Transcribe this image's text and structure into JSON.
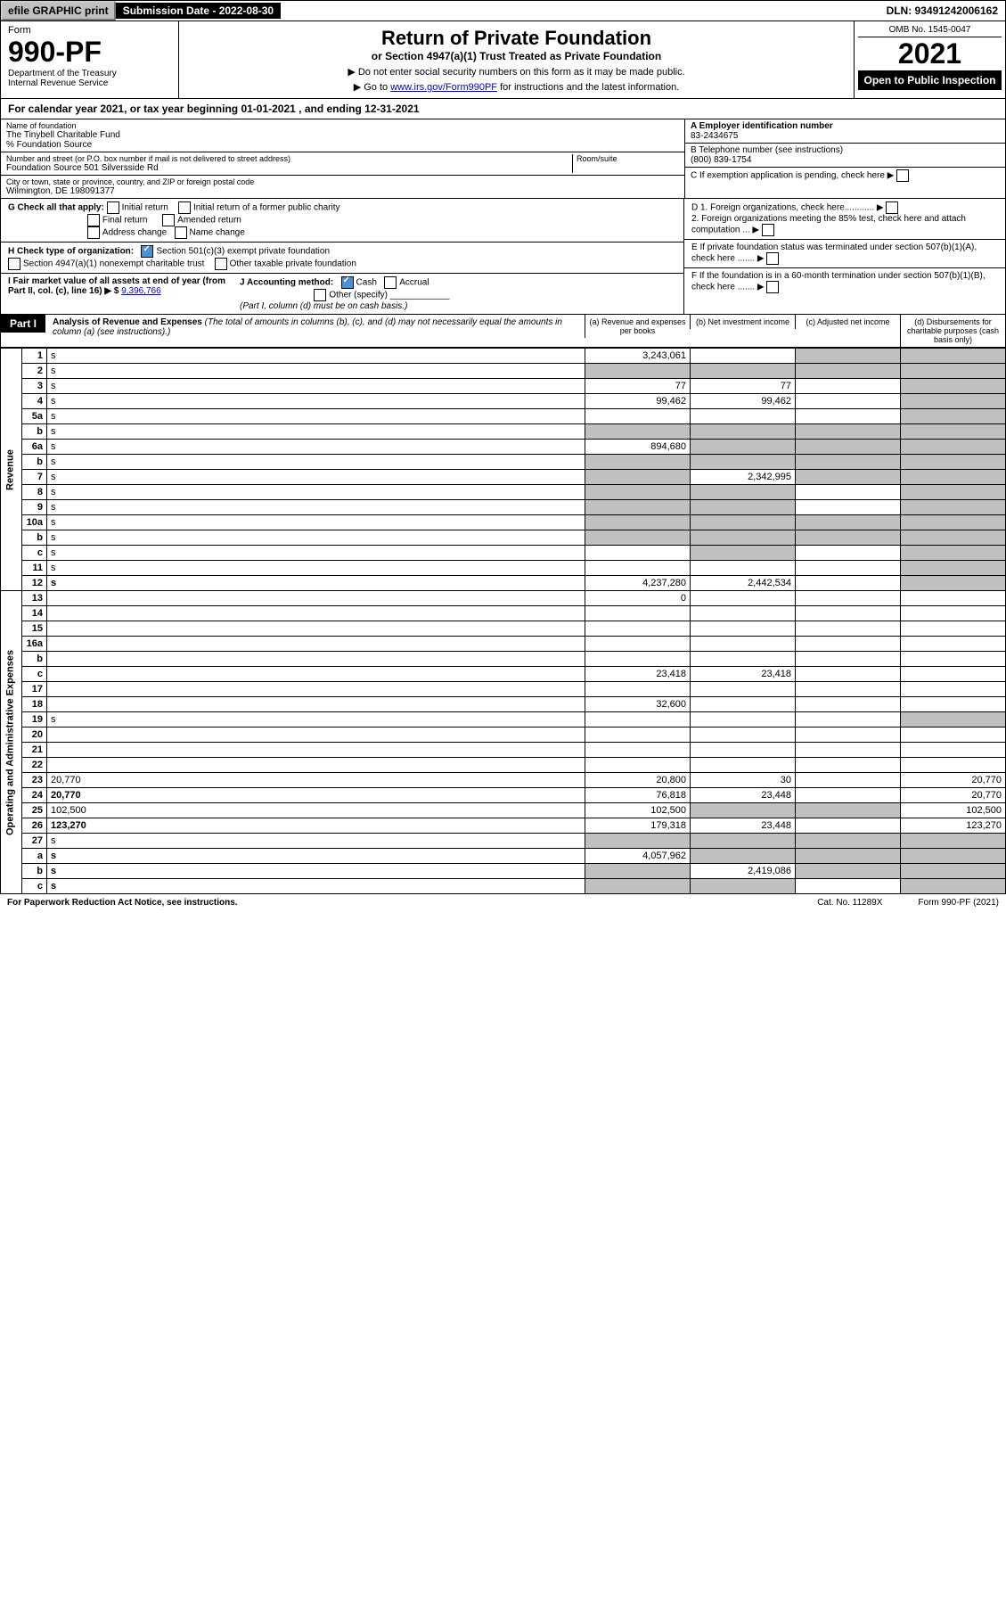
{
  "topbar": {
    "efile": "efile GRAPHIC print",
    "subdate_label": "Submission Date - 2022-08-30",
    "dln": "DLN: 93491242006162"
  },
  "header": {
    "form_label": "Form",
    "form_num": "990-PF",
    "dept": "Department of the Treasury\nInternal Revenue Service",
    "title": "Return of Private Foundation",
    "subtitle": "or Section 4947(a)(1) Trust Treated as Private Foundation",
    "instr1": "▶ Do not enter social security numbers on this form as it may be made public.",
    "instr2_pre": "▶ Go to ",
    "instr2_link": "www.irs.gov/Form990PF",
    "instr2_post": " for instructions and the latest information.",
    "omb": "OMB No. 1545-0047",
    "year": "2021",
    "open": "Open to Public Inspection"
  },
  "calyear": "For calendar year 2021, or tax year beginning 01-01-2021            , and ending 12-31-2021",
  "info": {
    "name_label": "Name of foundation",
    "name": "The Tinybell Charitable Fund",
    "care": "% Foundation Source",
    "addr_label": "Number and street (or P.O. box number if mail is not delivered to street address)",
    "addr": "Foundation Source 501 Silversside Rd",
    "room_label": "Room/suite",
    "city_label": "City or town, state or province, country, and ZIP or foreign postal code",
    "city": "Wilmington, DE  198091377",
    "a_label": "A Employer identification number",
    "a_val": "83-2434675",
    "b_label": "B Telephone number (see instructions)",
    "b_val": "(800) 839-1754",
    "c_label": "C If exemption application is pending, check here",
    "d1": "D 1. Foreign organizations, check here............",
    "d2": "2. Foreign organizations meeting the 85% test, check here and attach computation ...",
    "e_label": "E  If private foundation status was terminated under section 507(b)(1)(A), check here .......",
    "f_label": "F  If the foundation is in a 60-month termination under section 507(b)(1)(B), check here .......",
    "g_label": "G Check all that apply:",
    "g_opts": [
      "Initial return",
      "Initial return of a former public charity",
      "Final return",
      "Amended return",
      "Address change",
      "Name change"
    ],
    "h_label": "H Check type of organization:",
    "h_opt1": "Section 501(c)(3) exempt private foundation",
    "h_opt2": "Section 4947(a)(1) nonexempt charitable trust",
    "h_opt3": "Other taxable private foundation",
    "i_label": "I Fair market value of all assets at end of year (from Part II, col. (c), line 16) ▶ $",
    "i_val": "9,396,766",
    "j_label": "J Accounting method:",
    "j_cash": "Cash",
    "j_accrual": "Accrual",
    "j_other": "Other (specify)",
    "j_note": "(Part I, column (d) must be on cash basis.)"
  },
  "part1": {
    "tag": "Part I",
    "title": "Analysis of Revenue and Expenses",
    "note": " (The total of amounts in columns (b), (c), and (d) may not necessarily equal the amounts in column (a) (see instructions).)",
    "col_a": "(a)   Revenue and expenses per books",
    "col_b": "(b)   Net investment income",
    "col_c": "(c)   Adjusted net income",
    "col_d": "(d)   Disbursements for charitable purposes (cash basis only)",
    "vlab_rev": "Revenue",
    "vlab_exp": "Operating and Administrative Expenses"
  },
  "rows": [
    {
      "n": "1",
      "d": "s",
      "a": "3,243,061",
      "b": "",
      "c": "s"
    },
    {
      "n": "2",
      "d": "s",
      "a": "s",
      "b": "s",
      "c": "s"
    },
    {
      "n": "3",
      "d": "s",
      "a": "77",
      "b": "77",
      "c": ""
    },
    {
      "n": "4",
      "d": "s",
      "a": "99,462",
      "b": "99,462",
      "c": ""
    },
    {
      "n": "5a",
      "d": "s",
      "a": "",
      "b": "",
      "c": ""
    },
    {
      "n": "b",
      "d": "s",
      "a": "s",
      "b": "s",
      "c": "s"
    },
    {
      "n": "6a",
      "d": "s",
      "a": "894,680",
      "b": "s",
      "c": "s"
    },
    {
      "n": "b",
      "d": "s",
      "a": "s",
      "b": "s",
      "c": "s"
    },
    {
      "n": "7",
      "d": "s",
      "a": "s",
      "b": "2,342,995",
      "c": "s"
    },
    {
      "n": "8",
      "d": "s",
      "a": "s",
      "b": "s",
      "c": ""
    },
    {
      "n": "9",
      "d": "s",
      "a": "s",
      "b": "s",
      "c": ""
    },
    {
      "n": "10a",
      "d": "s",
      "a": "s",
      "b": "s",
      "c": "s"
    },
    {
      "n": "b",
      "d": "s",
      "a": "s",
      "b": "s",
      "c": "s"
    },
    {
      "n": "c",
      "d": "s",
      "a": "",
      "b": "s",
      "c": ""
    },
    {
      "n": "11",
      "d": "s",
      "a": "",
      "b": "",
      "c": ""
    },
    {
      "n": "12",
      "d": "s",
      "a": "4,237,280",
      "b": "2,442,534",
      "c": "",
      "bold": true
    },
    {
      "n": "13",
      "d": "",
      "a": "0",
      "b": "",
      "c": ""
    },
    {
      "n": "14",
      "d": "",
      "a": "",
      "b": "",
      "c": ""
    },
    {
      "n": "15",
      "d": "",
      "a": "",
      "b": "",
      "c": ""
    },
    {
      "n": "16a",
      "d": "",
      "a": "",
      "b": "",
      "c": ""
    },
    {
      "n": "b",
      "d": "",
      "a": "",
      "b": "",
      "c": ""
    },
    {
      "n": "c",
      "d": "",
      "a": "23,418",
      "b": "23,418",
      "c": ""
    },
    {
      "n": "17",
      "d": "",
      "a": "",
      "b": "",
      "c": ""
    },
    {
      "n": "18",
      "d": "",
      "a": "32,600",
      "b": "",
      "c": ""
    },
    {
      "n": "19",
      "d": "s",
      "a": "",
      "b": "",
      "c": ""
    },
    {
      "n": "20",
      "d": "",
      "a": "",
      "b": "",
      "c": ""
    },
    {
      "n": "21",
      "d": "",
      "a": "",
      "b": "",
      "c": ""
    },
    {
      "n": "22",
      "d": "",
      "a": "",
      "b": "",
      "c": ""
    },
    {
      "n": "23",
      "d": "20,770",
      "a": "20,800",
      "b": "30",
      "c": ""
    },
    {
      "n": "24",
      "d": "20,770",
      "a": "76,818",
      "b": "23,448",
      "c": "",
      "bold": true
    },
    {
      "n": "25",
      "d": "102,500",
      "a": "102,500",
      "b": "s",
      "c": "s"
    },
    {
      "n": "26",
      "d": "123,270",
      "a": "179,318",
      "b": "23,448",
      "c": "",
      "bold": true
    },
    {
      "n": "27",
      "d": "s",
      "a": "s",
      "b": "s",
      "c": "s"
    },
    {
      "n": "a",
      "d": "s",
      "a": "4,057,962",
      "b": "s",
      "c": "s",
      "bold": true
    },
    {
      "n": "b",
      "d": "s",
      "a": "s",
      "b": "2,419,086",
      "c": "s",
      "bold": true
    },
    {
      "n": "c",
      "d": "s",
      "a": "s",
      "b": "s",
      "c": "",
      "bold": true
    }
  ],
  "footer": {
    "left": "For Paperwork Reduction Act Notice, see instructions.",
    "mid": "Cat. No. 11289X",
    "right": "Form 990-PF (2021)"
  }
}
